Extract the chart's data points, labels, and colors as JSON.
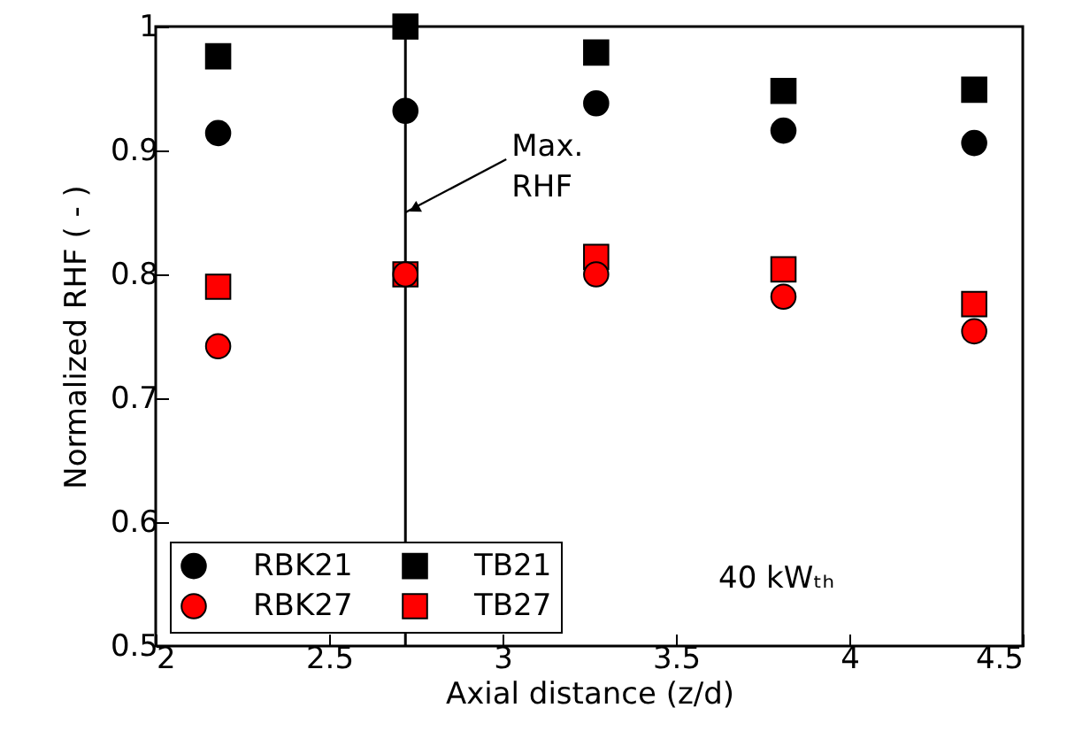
{
  "chart_data": {
    "type": "scatter",
    "xlabel": "Axial distance (z/d)",
    "ylabel": "Normalized RHF ( - )",
    "x": [
      2.18,
      2.72,
      3.27,
      3.81,
      4.36
    ],
    "series": [
      {
        "name": "RBK21",
        "color": "#000000",
        "marker": "circle",
        "values": [
          0.914,
          0.932,
          0.938,
          0.916,
          0.906
        ]
      },
      {
        "name": "TB21",
        "color": "#000000",
        "marker": "square",
        "values": [
          0.976,
          1.0,
          0.979,
          0.948,
          0.949
        ]
      },
      {
        "name": "RBK27",
        "color": "#ff0000",
        "marker": "circle",
        "values": [
          0.742,
          0.8,
          0.8,
          0.782,
          0.754
        ]
      },
      {
        "name": "TB27",
        "color": "#ff0000",
        "marker": "square",
        "values": [
          0.79,
          0.8,
          0.814,
          0.804,
          0.776
        ]
      }
    ],
    "xlim": [
      2,
      4.5
    ],
    "xticks": [
      2,
      2.5,
      3,
      3.5,
      4,
      4.5
    ],
    "ylim": [
      0.5,
      1
    ],
    "yticks": [
      0.5,
      0.6,
      0.7,
      0.8,
      0.9,
      1
    ],
    "ref_lines": [
      {
        "axis": "x",
        "value": 2.72,
        "color": "#000000"
      }
    ],
    "annotations": [
      {
        "text": "Max.\nRHF",
        "x": 2.72,
        "y": 0.85
      },
      "40 kWₜₕ"
    ],
    "legend": "bottom left",
    "grid": false
  }
}
